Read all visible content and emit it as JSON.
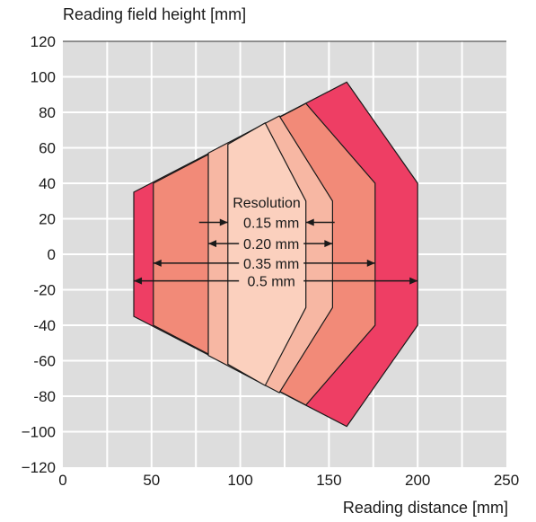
{
  "chart_data": {
    "type": "area",
    "ylabel": "Reading field height [mm]",
    "xlabel": "Reading distance  [mm]",
    "xlim": [
      0,
      250
    ],
    "ylim": [
      -120,
      120
    ],
    "x_ticks": [
      "0",
      "50",
      "100",
      "150",
      "200",
      "250"
    ],
    "y_ticks": [
      "−120",
      "−100",
      "-80",
      "-60",
      "-40",
      "-20",
      "0",
      "20",
      "40",
      "60",
      "80",
      "100",
      "120"
    ],
    "grid": true,
    "annotation_title": "Resolution",
    "colors": {
      "0.5 mm": "#ee3e64",
      "0.35 mm": "#f28a78",
      "0.20 mm": "#f7b7a3",
      "0.15 mm": "#fbd0be"
    },
    "regions": [
      {
        "label": "0.5 mm",
        "range": [
          40,
          200
        ],
        "points": [
          [
            40,
            35
          ],
          [
            160,
            97
          ],
          [
            200,
            40
          ],
          [
            200,
            -40
          ],
          [
            160,
            -97
          ],
          [
            40,
            -35
          ]
        ]
      },
      {
        "label": "0.35 mm",
        "range": [
          51,
          176
        ],
        "points": [
          [
            51,
            40
          ],
          [
            137,
            85
          ],
          [
            176,
            40
          ],
          [
            176,
            -40
          ],
          [
            137,
            -85
          ],
          [
            51,
            -40
          ]
        ]
      },
      {
        "label": "0.20 mm",
        "range": [
          82,
          152
        ],
        "points": [
          [
            82,
            57
          ],
          [
            122,
            78
          ],
          [
            152,
            30
          ],
          [
            152,
            -30
          ],
          [
            122,
            -78
          ],
          [
            82,
            -57
          ]
        ]
      },
      {
        "label": "0.15 mm",
        "range": [
          93,
          137
        ],
        "points": [
          [
            93,
            62
          ],
          [
            114,
            74
          ],
          [
            137,
            30
          ],
          [
            137,
            -30
          ],
          [
            114,
            -74
          ],
          [
            93,
            -62
          ]
        ]
      }
    ]
  }
}
